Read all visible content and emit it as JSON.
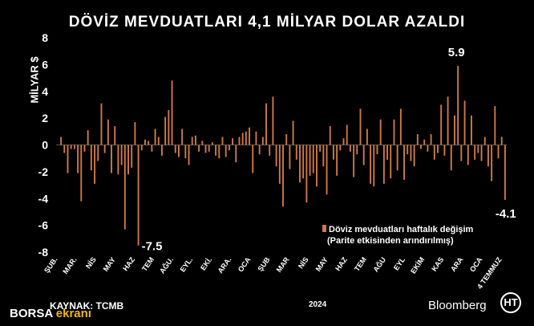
{
  "title": "DÖVİZ MEVDUATLARI 4,1 MİLYAR DOLAR AZALDI",
  "source": "KAYNAK:  TCMB",
  "watermark": {
    "prefix": "BORSA ",
    "suffix": "ekranı"
  },
  "brand": "Bloomberg",
  "channel_logo": "HT",
  "chart_data": {
    "type": "bar",
    "title": "DÖVİZ MEVDUATLARI 4,1 MİLYAR DOLAR AZALDI",
    "ylabel": "MİLYAR $",
    "ylim": [
      -8,
      8
    ],
    "yticks": [
      8,
      6,
      4,
      2,
      0,
      -2,
      -4,
      -6,
      -8
    ],
    "x_tick_labels": [
      "ŞUB.",
      "MAR.",
      "NİS",
      "MAY",
      "HAZ",
      "TEM",
      "AĞU.",
      "EYL.",
      "EKİ.",
      "ARA.",
      "OCA",
      "ŞUB",
      "MAR",
      "NİS",
      "MAY",
      "HAZ",
      "TEM",
      "AĞU",
      "EYL",
      "EKİM",
      "KAS",
      "ARA",
      "OCA",
      "4 TEMMUZ"
    ],
    "year_label": "2024",
    "bar_color": "#d07a45",
    "series": [
      {
        "name": "Döviz mevduatları haftalık değişim",
        "values": [
          0.6,
          -0.6,
          -2.1,
          -0.3,
          -0.3,
          -2.1,
          -4.2,
          -0.5,
          1.1,
          -1.9,
          -2.9,
          -1.2,
          3.1,
          -0.6,
          1.9,
          -2.1,
          1.4,
          -2.2,
          -1.5,
          -6.3,
          -2.2,
          -1.7,
          1.7,
          -7.5,
          -0.4,
          0.4,
          0.3,
          -0.5,
          1.2,
          0.6,
          -0.8,
          2.1,
          2.6,
          4.8,
          -0.6,
          -0.9,
          1.2,
          -1.0,
          -1.5,
          0.6,
          0.7,
          -0.5,
          0.3,
          -0.6,
          -0.5,
          0.2,
          -0.8,
          -1.0,
          0.6,
          -0.9,
          -0.4,
          0.5,
          -1.3,
          0.6,
          0.9,
          1.0,
          1.3,
          -2.1,
          1.0,
          -0.7,
          0.6,
          3.1,
          -0.8,
          3.6,
          -1.6,
          -2.9,
          -4.6,
          0.8,
          -1.8,
          1.8,
          -1.1,
          -2.8,
          -2.5,
          -4.3,
          -2.3,
          -2.1,
          -3.1,
          -0.5,
          -1.6,
          -3.7,
          1.4,
          -1.1,
          -2.3,
          -0.4,
          0.5,
          1.5,
          -0.5,
          -2.4,
          -0.7,
          2.7,
          -1.5,
          1.2,
          -2.9,
          -3.1,
          -0.7,
          1.9,
          -2.9,
          -1.1,
          -2.5,
          1.9,
          -1.9,
          2.7,
          -2.6,
          -0.7,
          -1.2,
          -1.6,
          0.8,
          -0.3,
          0.4,
          -0.5,
          0.8,
          -1.1,
          -0.6,
          3.0,
          -0.8,
          3.6,
          -1.9,
          2.2,
          5.9,
          -1.2,
          3.3,
          -1.5,
          2.2,
          -1.1,
          -0.6,
          -1.2,
          0.6,
          -1.6,
          -2.7,
          2.9,
          -1.0,
          0.6,
          -4.1
        ]
      }
    ],
    "annotations": [
      {
        "text": "-7.5",
        "value": -7.5
      },
      {
        "text": "5.9",
        "value": 5.9
      },
      {
        "text": "-4.1",
        "value": -4.1
      }
    ],
    "legend": {
      "line1": "Döviz mevduatları haftalık değişim",
      "line2": "(Parite etkisinden arındırılmış)",
      "placement": "bottom-right"
    },
    "grid": false
  }
}
